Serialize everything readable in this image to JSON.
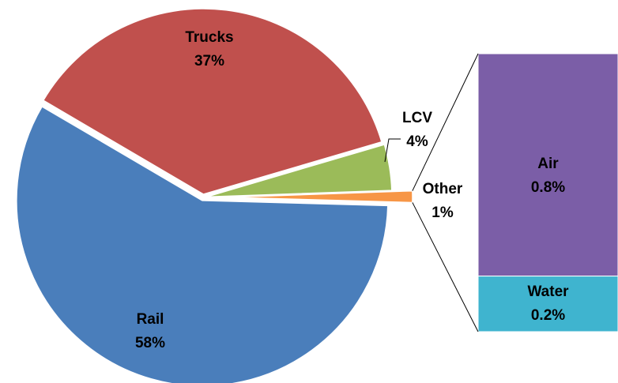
{
  "chart_data": {
    "type": "pie",
    "categories": [
      "Rail",
      "Trucks",
      "LCV",
      "Other"
    ],
    "values": [
      58,
      37,
      4,
      1
    ],
    "value_labels": [
      "58%",
      "37%",
      "4%",
      "1%"
    ],
    "colors": [
      "#4a7ebb",
      "#c0504d",
      "#9bbb59",
      "#f79646"
    ],
    "breakdown": {
      "type": "bar",
      "categories": [
        "Air",
        "Water"
      ],
      "values": [
        0.8,
        0.2
      ],
      "value_labels": [
        "0.8%",
        "0.2%"
      ],
      "colors": [
        "#7b5ea7",
        "#3fb4cf"
      ]
    }
  }
}
